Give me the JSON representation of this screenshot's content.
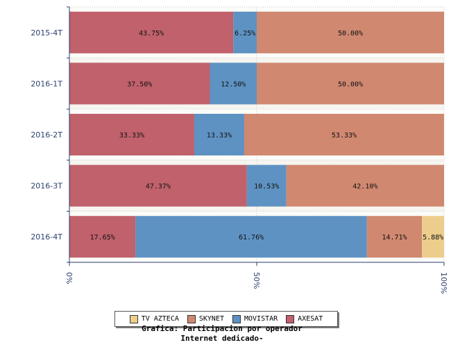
{
  "chart_data": {
    "type": "bar",
    "orientation": "horizontal",
    "stacked": true,
    "percent_stacked": true,
    "categories": [
      "2015-4T",
      "2016-1T",
      "2016-2T",
      "2016-3T",
      "2016-4T"
    ],
    "series": [
      {
        "name": "AXESAT",
        "color": "#c0616b",
        "values": [
          43.75,
          37.5,
          33.33,
          47.37,
          17.65
        ]
      },
      {
        "name": "MOVISTAR",
        "color": "#5e92c2",
        "values": [
          6.25,
          12.5,
          13.33,
          10.53,
          61.76
        ]
      },
      {
        "name": "SKYNET",
        "color": "#d08870",
        "values": [
          50.0,
          50.0,
          53.33,
          42.1,
          14.71
        ]
      },
      {
        "name": "TV AZTECA",
        "color": "#eccd8c",
        "values": [
          0,
          0,
          0,
          0,
          5.88
        ]
      }
    ],
    "xlim": [
      0,
      100
    ],
    "xticks": [
      "0%",
      "50%",
      "100%"
    ],
    "legend_order": [
      "TV AZTECA",
      "SKYNET",
      "MOVISTAR",
      "AXESAT"
    ],
    "legend_position": "bottom",
    "grid": true,
    "title_lines": [
      "Grafica: Participacion por operador",
      "Internet dedicado-"
    ]
  }
}
